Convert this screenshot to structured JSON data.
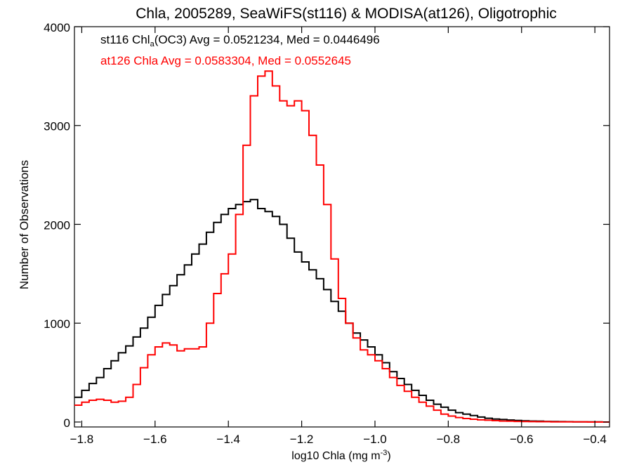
{
  "chart_data": {
    "type": "line",
    "step": true,
    "title": "Chla, 2005289, SeaWiFS(st116) & MODISA(at126), Oligotrophic",
    "xlabel": "log10 Chla (mg m",
    "xlabel_sup": "-3",
    "xlabel_end": ")",
    "ylabel": "Number of Observations",
    "xlim": [
      -1.82,
      -0.36
    ],
    "ylim": [
      -50,
      4000
    ],
    "xticks": [
      -1.8,
      -1.6,
      -1.4,
      -1.2,
      -1.0,
      -0.8,
      -0.6,
      -0.4
    ],
    "xtick_labels": [
      "−1.8",
      "−1.6",
      "−1.4",
      "−1.2",
      "−1.0",
      "−0.8",
      "−0.6",
      "−0.4"
    ],
    "yticks": [
      0,
      1000,
      2000,
      3000,
      4000
    ],
    "ytick_labels": [
      "0",
      "1000",
      "2000",
      "3000",
      "4000"
    ],
    "grid": false,
    "legend_position": "top-left",
    "annotations": [
      {
        "name": "st116",
        "part1": "st116 Chl",
        "sub": "a",
        "part2": "(OC3) Avg = 0.0521234, Med = 0.0446496",
        "color": "#000000"
      },
      {
        "name": "at126",
        "part1": "at126 Chla Avg = 0.0583304, Med = 0.0552645",
        "sub": "",
        "part2": "",
        "color": "#ff0000"
      }
    ],
    "series": [
      {
        "color": "#000000",
        "x": [
          -1.82,
          -1.8,
          -1.78,
          -1.76,
          -1.74,
          -1.72,
          -1.7,
          -1.68,
          -1.66,
          -1.64,
          -1.62,
          -1.6,
          -1.58,
          -1.56,
          -1.54,
          -1.52,
          -1.5,
          -1.48,
          -1.46,
          -1.44,
          -1.42,
          -1.4,
          -1.38,
          -1.36,
          -1.34,
          -1.32,
          -1.3,
          -1.28,
          -1.26,
          -1.24,
          -1.22,
          -1.2,
          -1.18,
          -1.16,
          -1.14,
          -1.12,
          -1.1,
          -1.08,
          -1.06,
          -1.04,
          -1.02,
          -1.0,
          -0.98,
          -0.96,
          -0.94,
          -0.92,
          -0.9,
          -0.88,
          -0.86,
          -0.84,
          -0.82,
          -0.8,
          -0.78,
          -0.76,
          -0.74,
          -0.72,
          -0.7,
          -0.68,
          -0.66,
          -0.64,
          -0.62,
          -0.6,
          -0.58,
          -0.56,
          -0.54,
          -0.52,
          -0.5,
          -0.48,
          -0.46,
          -0.44,
          -0.42,
          -0.4,
          -0.38
        ],
        "values": [
          250,
          320,
          390,
          450,
          540,
          620,
          700,
          770,
          860,
          950,
          1060,
          1180,
          1290,
          1380,
          1490,
          1590,
          1700,
          1800,
          1920,
          2020,
          2100,
          2160,
          2200,
          2230,
          2250,
          2160,
          2130,
          2080,
          2000,
          1860,
          1720,
          1620,
          1540,
          1450,
          1340,
          1220,
          1120,
          1000,
          900,
          830,
          760,
          680,
          600,
          510,
          440,
          380,
          320,
          270,
          220,
          180,
          150,
          120,
          95,
          80,
          65,
          50,
          38,
          30,
          25,
          20,
          16,
          12,
          10,
          8,
          6,
          5,
          4,
          3,
          2,
          2,
          1,
          1,
          0
        ]
      },
      {
        "color": "#ff0000",
        "x": [
          -1.82,
          -1.8,
          -1.78,
          -1.76,
          -1.74,
          -1.72,
          -1.7,
          -1.68,
          -1.66,
          -1.64,
          -1.62,
          -1.6,
          -1.58,
          -1.56,
          -1.54,
          -1.52,
          -1.5,
          -1.48,
          -1.46,
          -1.44,
          -1.42,
          -1.4,
          -1.38,
          -1.36,
          -1.34,
          -1.32,
          -1.3,
          -1.28,
          -1.26,
          -1.24,
          -1.22,
          -1.2,
          -1.18,
          -1.16,
          -1.14,
          -1.12,
          -1.1,
          -1.08,
          -1.06,
          -1.04,
          -1.02,
          -1.0,
          -0.98,
          -0.96,
          -0.94,
          -0.92,
          -0.9,
          -0.88,
          -0.86,
          -0.84,
          -0.82,
          -0.8,
          -0.78,
          -0.76,
          -0.74,
          -0.72,
          -0.7,
          -0.68,
          -0.66,
          -0.64,
          -0.62,
          -0.6,
          -0.58,
          -0.56,
          -0.54,
          -0.52,
          -0.5,
          -0.48,
          -0.46,
          -0.44,
          -0.42,
          -0.4,
          -0.38
        ],
        "values": [
          170,
          200,
          220,
          230,
          220,
          200,
          210,
          250,
          380,
          550,
          680,
          760,
          800,
          780,
          720,
          740,
          740,
          760,
          1000,
          1300,
          1500,
          1700,
          2100,
          2800,
          3300,
          3500,
          3550,
          3400,
          3250,
          3200,
          3250,
          3150,
          2900,
          2600,
          2200,
          1650,
          1250,
          1000,
          850,
          730,
          680,
          620,
          540,
          450,
          370,
          310,
          250,
          200,
          160,
          120,
          80,
          60,
          45,
          35,
          28,
          22,
          18,
          14,
          10,
          8,
          6,
          5,
          4,
          3,
          3,
          2,
          2,
          1,
          1,
          1,
          0,
          0,
          0
        ]
      }
    ]
  }
}
